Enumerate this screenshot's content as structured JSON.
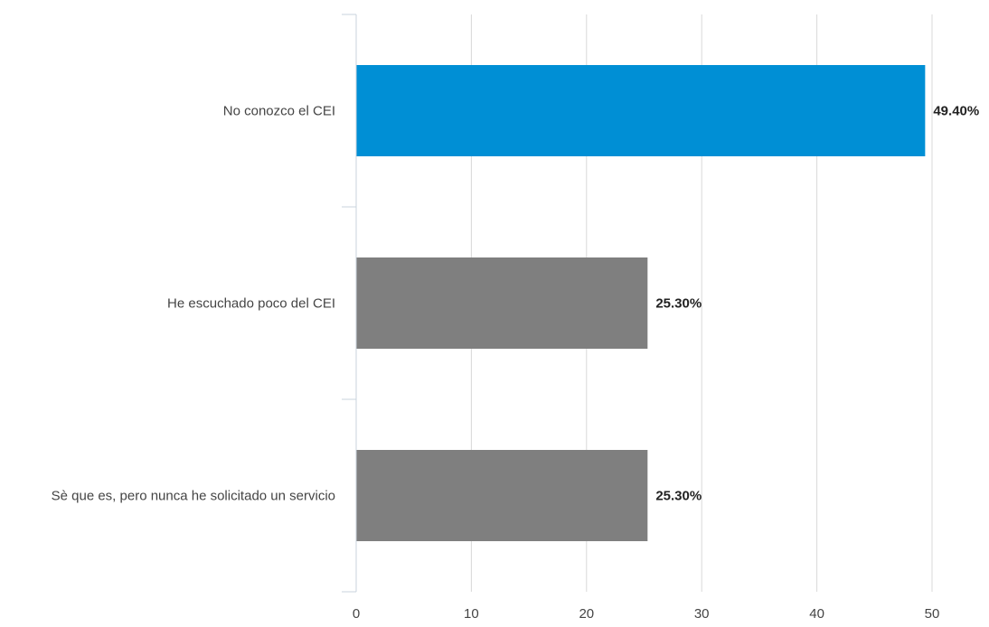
{
  "chart_data": {
    "type": "bar",
    "orientation": "horizontal",
    "title": "",
    "xlabel": "",
    "ylabel": "",
    "categories": [
      "No conozco el CEI",
      "He escuchado poco del CEI",
      "Sè que es, pero nunca he solicitado un servicio"
    ],
    "values": [
      49.4,
      25.3,
      25.3
    ],
    "data_labels": [
      "49.40%",
      "25.30%",
      "25.30%"
    ],
    "xlim": [
      0,
      50
    ],
    "xticks": [
      0,
      10,
      20,
      30,
      40,
      50
    ],
    "xtick_labels": [
      "0",
      "10",
      "20",
      "30",
      "40",
      "50"
    ],
    "grid": true,
    "legend": "none",
    "colors": {
      "highlight": "#008fd5",
      "default": "#7f7f7f",
      "grid": "#d9d9d9",
      "axis": "#c9d3dc"
    }
  }
}
